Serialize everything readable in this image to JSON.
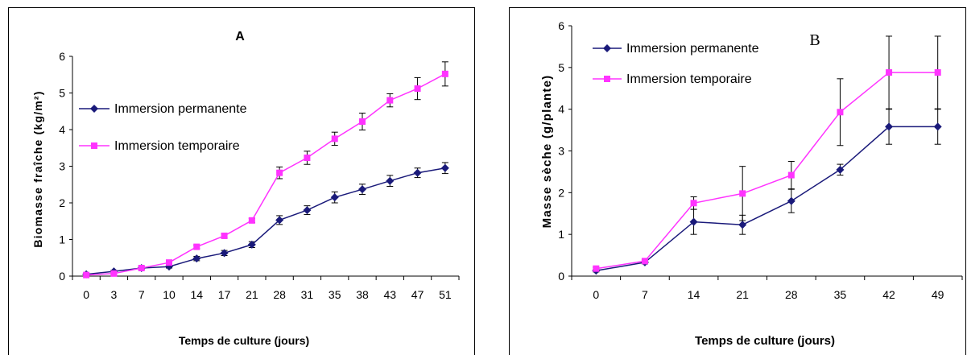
{
  "chart_data": [
    {
      "type": "line",
      "title": "A",
      "xlabel": "Temps de culture (jours)",
      "ylabel": "Biomasse fraîche (kg/m²)",
      "categories": [
        "0",
        "3",
        "7",
        "10",
        "14",
        "17",
        "21",
        "28",
        "31",
        "35",
        "38",
        "43",
        "47",
        "51"
      ],
      "ylim": [
        0,
        6
      ],
      "yticks": [
        "0",
        "1",
        "2",
        "3",
        "4",
        "5",
        "6"
      ],
      "grid": false,
      "legend_position": "top-left",
      "series": [
        {
          "name": "Immersion permanente",
          "color": "#1a1a7a",
          "marker": "diamond",
          "values": [
            0.05,
            0.13,
            0.22,
            0.26,
            0.48,
            0.63,
            0.86,
            1.53,
            1.8,
            2.15,
            2.37,
            2.6,
            2.82,
            2.95
          ],
          "errors": [
            0.02,
            0.03,
            0.04,
            0.04,
            0.06,
            0.07,
            0.08,
            0.12,
            0.12,
            0.15,
            0.14,
            0.15,
            0.13,
            0.15
          ]
        },
        {
          "name": "Immersion temporaire",
          "color": "#ff33ff",
          "marker": "square",
          "values": [
            0.03,
            0.07,
            0.22,
            0.37,
            0.8,
            1.1,
            1.52,
            2.82,
            3.23,
            3.75,
            4.22,
            4.8,
            5.12,
            5.52
          ],
          "errors": [
            0.02,
            0.03,
            0.03,
            0.05,
            0.05,
            0.06,
            0.06,
            0.16,
            0.18,
            0.18,
            0.23,
            0.18,
            0.3,
            0.33
          ]
        }
      ]
    },
    {
      "type": "line",
      "title": "B",
      "xlabel": "Temps de culture (jours)",
      "ylabel": "Masse sèche (g/plante)",
      "categories": [
        "0",
        "7",
        "14",
        "21",
        "28",
        "35",
        "42",
        "49"
      ],
      "ylim": [
        0,
        6
      ],
      "yticks": [
        "0",
        "1",
        "2",
        "3",
        "4",
        "5",
        "6"
      ],
      "grid": false,
      "legend_position": "top-left",
      "series": [
        {
          "name": "Immersion permanente",
          "color": "#1a1a7a",
          "marker": "diamond",
          "values": [
            0.13,
            0.33,
            1.3,
            1.23,
            1.8,
            2.55,
            3.58,
            3.58
          ],
          "errors": [
            0.03,
            0.04,
            0.3,
            0.23,
            0.28,
            0.13,
            0.42,
            0.42
          ]
        },
        {
          "name": "Immersion temporaire",
          "color": "#ff33ff",
          "marker": "square",
          "values": [
            0.18,
            0.36,
            1.75,
            1.98,
            2.42,
            3.93,
            4.88,
            4.88
          ],
          "errors": [
            0.03,
            0.04,
            0.15,
            0.65,
            0.33,
            0.8,
            0.87,
            0.87
          ]
        }
      ]
    }
  ]
}
